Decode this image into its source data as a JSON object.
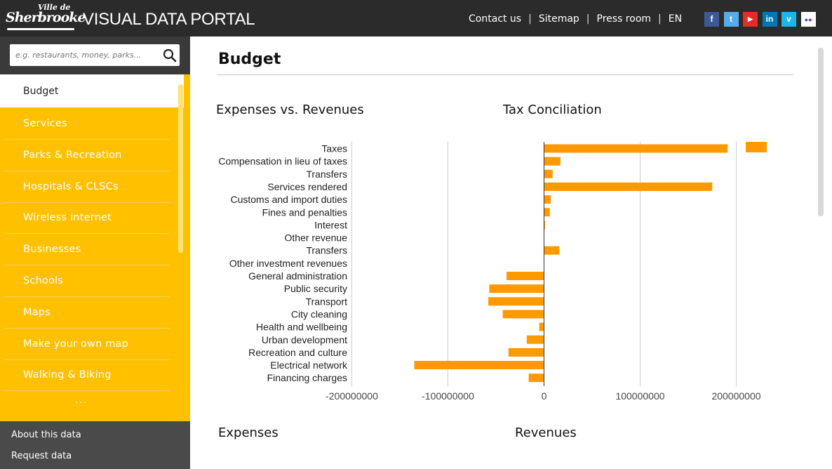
{
  "header": {
    "logo_small": "Ville de",
    "logo_main": "Sherbrooke",
    "site_title": "VISUAL DATA PORTAL",
    "nav": [
      "Contact us",
      "Sitemap",
      "Press room",
      "EN"
    ],
    "separator": "|",
    "social": [
      {
        "name": "facebook-icon",
        "glyph": "f",
        "color": "#3b5998"
      },
      {
        "name": "twitter-icon",
        "glyph": "t",
        "color": "#55acee"
      },
      {
        "name": "youtube-icon",
        "glyph": "▶",
        "color": "#e52d27"
      },
      {
        "name": "linkedin-icon",
        "glyph": "in",
        "color": "#0077b5"
      },
      {
        "name": "vimeo-icon",
        "glyph": "v",
        "color": "#1ab7ea"
      },
      {
        "name": "flickr-icon",
        "glyph": "●●",
        "color": "#ffffff"
      }
    ]
  },
  "sidebar": {
    "search_placeholder": "e.g. restaurants, money, parks...",
    "active_item": "Budget",
    "items": [
      "Services",
      "Parks & Recreation",
      "Hospitals & CLSCs",
      "Wireless internet",
      "Businesses",
      "Schools",
      "Maps",
      "Make your own map",
      "Walking & Biking"
    ],
    "more": "...",
    "footer": [
      "About this data",
      "Request data"
    ]
  },
  "main": {
    "title": "Budget",
    "sections": {
      "expenses_vs_revenues": "Expenses vs. Revenues",
      "tax_conciliation": "Tax Conciliation",
      "expenses": "Expenses",
      "revenues": "Revenues"
    }
  },
  "colors": {
    "accent": "#ffc000",
    "bar": "#ff9900",
    "header": "#2b2b2b"
  },
  "chart_data": {
    "type": "bar",
    "orientation": "horizontal",
    "title": "",
    "xlabel": "",
    "ylabel": "",
    "categories": [
      "Taxes",
      "Compensation in lieu of taxes",
      "Transfers",
      "Services rendered",
      "Customs and import duties",
      "Fines and penalties",
      "Interest",
      "Other revenue",
      "Transfers",
      "Other investment revenues",
      "General administration",
      "Public security",
      "Transport",
      "City cleaning",
      "Health and wellbeing",
      "Urban development",
      "Recreation and culture",
      "Electrical network",
      "Financing charges"
    ],
    "values": [
      191000000,
      17000000,
      9000000,
      175000000,
      7000000,
      6000000,
      1000000,
      0,
      16000000,
      0,
      -39000000,
      -57000000,
      -58000000,
      -43000000,
      -5000000,
      -18000000,
      -37000000,
      -135000000,
      -16000000
    ],
    "xlim": [
      -200000000,
      220000000
    ],
    "xticks": [
      "-200000000",
      "-100000000",
      "0",
      "100000000",
      "200000000"
    ],
    "xtick_values": [
      -200000000,
      -100000000,
      0,
      100000000,
      200000000
    ],
    "grid": true,
    "legend_swatch": true
  }
}
